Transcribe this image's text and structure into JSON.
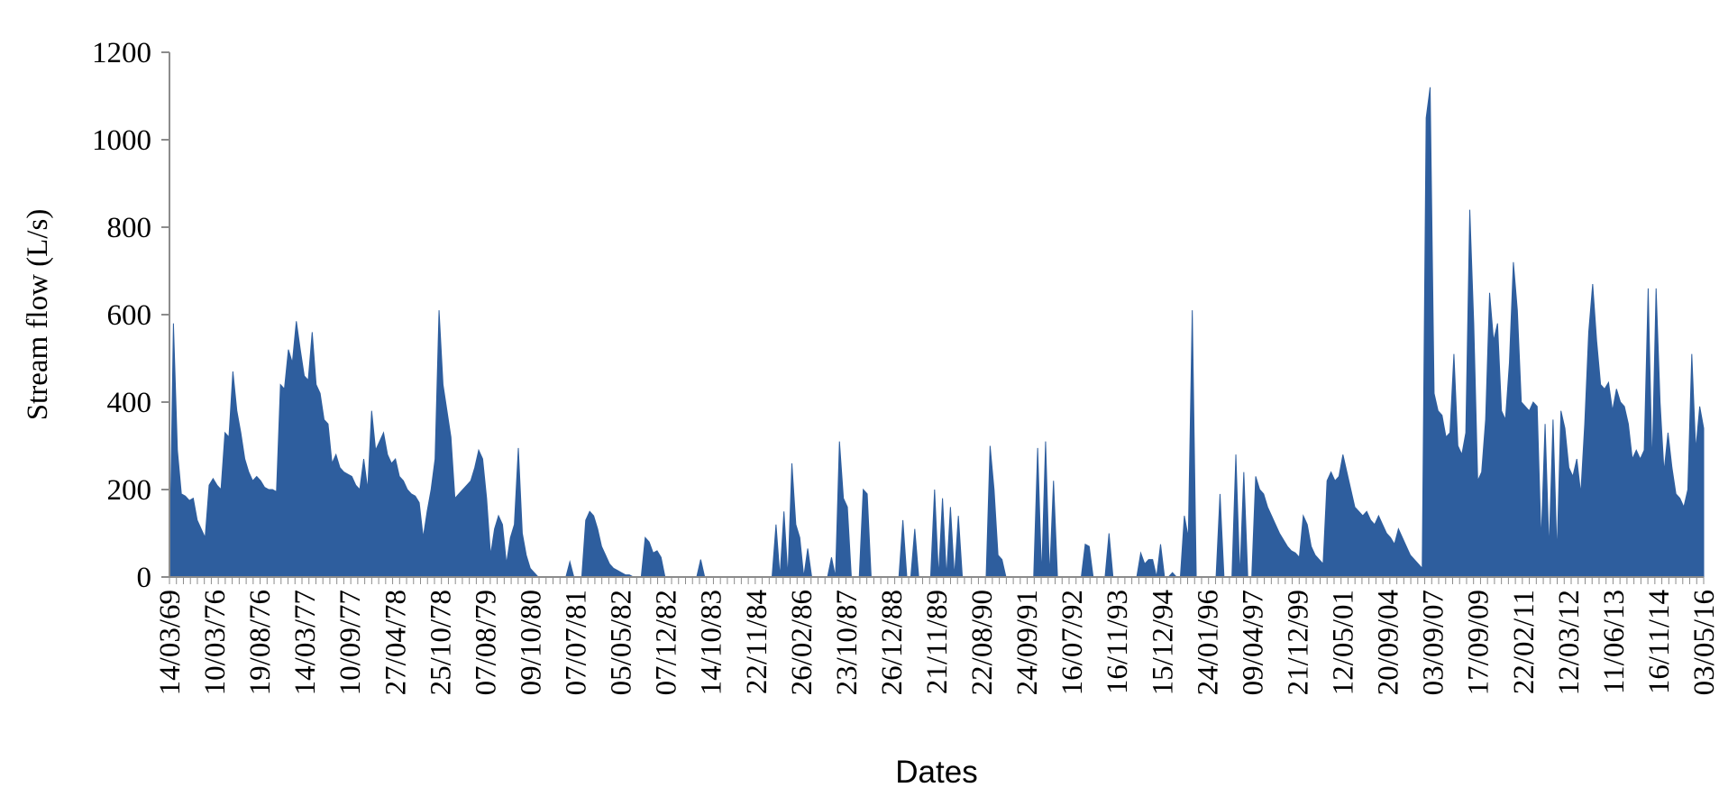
{
  "chart_data": {
    "type": "area",
    "title": "",
    "xlabel": "Dates",
    "ylabel": "Stream flow (L/s)",
    "ylim": [
      0,
      1200
    ],
    "yticks": [
      0,
      200,
      400,
      600,
      800,
      1000,
      1200
    ],
    "grid": false,
    "legend": "none",
    "color": "#2E5E9E",
    "x_tick_labels": [
      "14/03/69",
      "10/03/76",
      "19/08/76",
      "14/03/77",
      "10/09/77",
      "27/04/78",
      "25/10/78",
      "07/08/79",
      "09/10/80",
      "07/07/81",
      "05/05/82",
      "07/12/82",
      "14/10/83",
      "22/11/84",
      "26/02/86",
      "23/10/87",
      "26/12/88",
      "21/11/89",
      "22/08/90",
      "24/09/91",
      "16/07/92",
      "16/11/93",
      "15/12/94",
      "24/01/96",
      "09/04/97",
      "21/12/99",
      "12/05/01",
      "20/09/04",
      "03/09/07",
      "17/09/09",
      "22/02/11",
      "12/03/12",
      "11/06/13",
      "16/11/14",
      "03/05/16"
    ],
    "series": [
      {
        "values": [
          0,
          580,
          290,
          190,
          185,
          175,
          180,
          130,
          110,
          90,
          210,
          225,
          210,
          200,
          330,
          320,
          470,
          380,
          330,
          270,
          240,
          220,
          230,
          220,
          205,
          200,
          200,
          195,
          440,
          430,
          520,
          490,
          585,
          520,
          460,
          450,
          560,
          440,
          420,
          360,
          350,
          260,
          280,
          250,
          240,
          235,
          230,
          210,
          200,
          270,
          200,
          380,
          290,
          310,
          330,
          280,
          260,
          270,
          230,
          220,
          200,
          190,
          185,
          170,
          90,
          150,
          200,
          270,
          610,
          440,
          380,
          320,
          180,
          190,
          200,
          210,
          220,
          250,
          290,
          270,
          180,
          50,
          110,
          140,
          120,
          30,
          90,
          120,
          295,
          100,
          50,
          20,
          10,
          0,
          0,
          0,
          0,
          0,
          0,
          0,
          0,
          35,
          0,
          0,
          0,
          130,
          150,
          140,
          110,
          70,
          50,
          30,
          20,
          15,
          10,
          5,
          5,
          0,
          0,
          0,
          90,
          80,
          55,
          60,
          45,
          0,
          0,
          0,
          0,
          0,
          0,
          0,
          0,
          0,
          40,
          0,
          0,
          0,
          0,
          0,
          0,
          0,
          0,
          0,
          0,
          0,
          0,
          0,
          0,
          0,
          0,
          0,
          0,
          120,
          0,
          150,
          0,
          260,
          120,
          90,
          0,
          65,
          0,
          0,
          0,
          0,
          0,
          45,
          0,
          310,
          180,
          160,
          0,
          0,
          0,
          200,
          190,
          0,
          0,
          0,
          0,
          0,
          0,
          0,
          0,
          130,
          0,
          0,
          110,
          0,
          0,
          0,
          0,
          200,
          0,
          180,
          0,
          160,
          0,
          140,
          0,
          0,
          0,
          0,
          0,
          0,
          0,
          300,
          200,
          50,
          40,
          0,
          0,
          0,
          0,
          0,
          0,
          0,
          0,
          295,
          0,
          310,
          0,
          220,
          0,
          0,
          0,
          0,
          0,
          0,
          0,
          75,
          70,
          0,
          0,
          0,
          0,
          100,
          0,
          0,
          0,
          0,
          0,
          0,
          0,
          55,
          30,
          40,
          40,
          0,
          75,
          0,
          0,
          10,
          0,
          0,
          140,
          90,
          610,
          0,
          0,
          0,
          0,
          0,
          0,
          190,
          0,
          0,
          0,
          280,
          0,
          240,
          0,
          0,
          230,
          200,
          190,
          160,
          140,
          120,
          100,
          85,
          70,
          60,
          55,
          45,
          140,
          120,
          70,
          50,
          40,
          30,
          220,
          240,
          220,
          230,
          280,
          240,
          200,
          160,
          150,
          140,
          150,
          130,
          120,
          140,
          120,
          100,
          90,
          75,
          110,
          90,
          70,
          50,
          40,
          30,
          20,
          1050,
          1120,
          420,
          380,
          370,
          320,
          330,
          510,
          300,
          280,
          330,
          840,
          580,
          220,
          240,
          360,
          650,
          540,
          580,
          380,
          360,
          490,
          720,
          610,
          400,
          390,
          380,
          400,
          390,
          80,
          350,
          60,
          360,
          50,
          380,
          340,
          250,
          230,
          270,
          190,
          350,
          560,
          670,
          540,
          440,
          430,
          445,
          380,
          430,
          400,
          390,
          350,
          270,
          290,
          270,
          290,
          660,
          250,
          660,
          400,
          240,
          330,
          250,
          190,
          180,
          160,
          200,
          510,
          290,
          390,
          340
        ]
      }
    ]
  }
}
